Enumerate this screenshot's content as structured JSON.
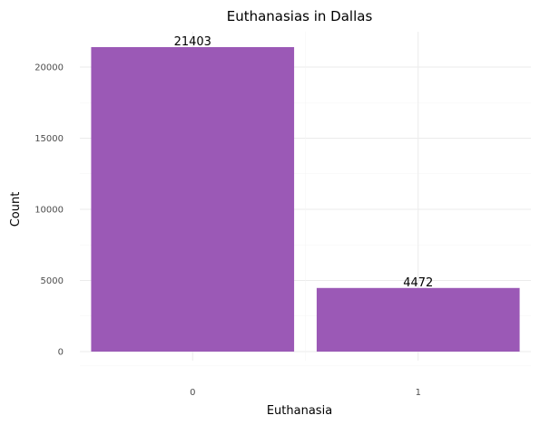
{
  "chart_data": {
    "type": "bar",
    "title": "Euthanasias in Dallas",
    "xlabel": "Euthanasia",
    "ylabel": "Count",
    "categories": [
      "0",
      "1"
    ],
    "values": [
      21403,
      4472
    ],
    "data_labels": [
      "21403",
      "4472"
    ],
    "y_ticks": [
      0,
      5000,
      10000,
      15000,
      20000
    ],
    "y_tick_labels": [
      "0",
      "5000",
      "10000",
      "15000",
      "20000"
    ],
    "ylim": [
      0,
      22500
    ],
    "grid": true,
    "legend": "none",
    "bar_color": "#9b59b6"
  }
}
